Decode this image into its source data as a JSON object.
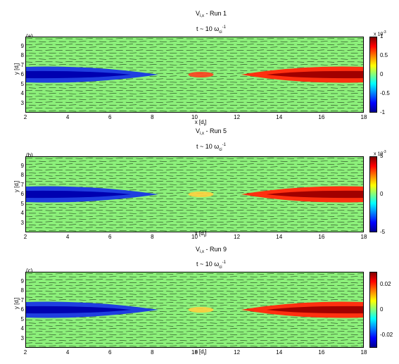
{
  "chart_data": [
    {
      "type": "heatmap",
      "panel_label": "(a)",
      "title_main": "V",
      "title_sub": "i,x",
      "title_rest": " - Run 1",
      "time_prefix": "t ~ 10 ω",
      "time_sup": "-1",
      "time_sub": "ci",
      "xlabel": "x [d",
      "xlabel_sub": "i",
      "xlabel_end": "]",
      "ylabel": "y [d",
      "ylabel_sub": "i",
      "ylabel_end": "]",
      "xlim": [
        2,
        18
      ],
      "ylim": [
        2,
        10
      ],
      "x_ticks": [
        "2",
        "4",
        "6",
        "8",
        "10",
        "12",
        "14",
        "16",
        "18"
      ],
      "y_ticks": [
        "3",
        "4",
        "5",
        "6",
        "7",
        "8",
        "9"
      ],
      "colorbar_ticks": [
        "1",
        "0.5",
        "0",
        "-0.5",
        "-1"
      ],
      "colorbar_scale": "x 10",
      "colorbar_scale_exp": "-3",
      "clim": [
        -1,
        1
      ]
    },
    {
      "type": "heatmap",
      "panel_label": "(b)",
      "title_main": "V",
      "title_sub": "i,x",
      "title_rest": " - Run 5",
      "time_prefix": "t ~ 10 ω",
      "time_sup": "-1",
      "time_sub": "ci",
      "xlabel": "x [d",
      "xlabel_sub": "i",
      "xlabel_end": "]",
      "ylabel": "y [d",
      "ylabel_sub": "i",
      "ylabel_end": "]",
      "xlim": [
        2,
        18
      ],
      "ylim": [
        2,
        10
      ],
      "x_ticks": [
        "2",
        "4",
        "6",
        "8",
        "10",
        "12",
        "14",
        "16",
        "18"
      ],
      "y_ticks": [
        "3",
        "4",
        "5",
        "6",
        "7",
        "8",
        "9"
      ],
      "colorbar_ticks": [
        "5",
        "0",
        "-5"
      ],
      "colorbar_scale": "x 10",
      "colorbar_scale_exp": "-3",
      "clim": [
        -5,
        5
      ]
    },
    {
      "type": "heatmap",
      "panel_label": "(c)",
      "title_main": "V",
      "title_sub": "i,x",
      "title_rest": " - Run 9",
      "time_prefix": "t ~ 10 ω",
      "time_sup": "-1",
      "time_sub": "ci",
      "xlabel": "x [d",
      "xlabel_sub": "i",
      "xlabel_end": "]",
      "ylabel": "y [d",
      "ylabel_sub": "i",
      "ylabel_end": "]",
      "xlim": [
        2,
        18
      ],
      "ylim": [
        2,
        10
      ],
      "x_ticks": [
        "2",
        "4",
        "6",
        "8",
        "10",
        "12",
        "14",
        "16",
        "18"
      ],
      "y_ticks": [
        "3",
        "4",
        "5",
        "6",
        "7",
        "8",
        "9"
      ],
      "colorbar_ticks": [
        "0.02",
        "0",
        "-0.02"
      ],
      "colorbar_scale": "",
      "colorbar_scale_exp": "",
      "clim": [
        -0.03,
        0.03
      ]
    }
  ]
}
